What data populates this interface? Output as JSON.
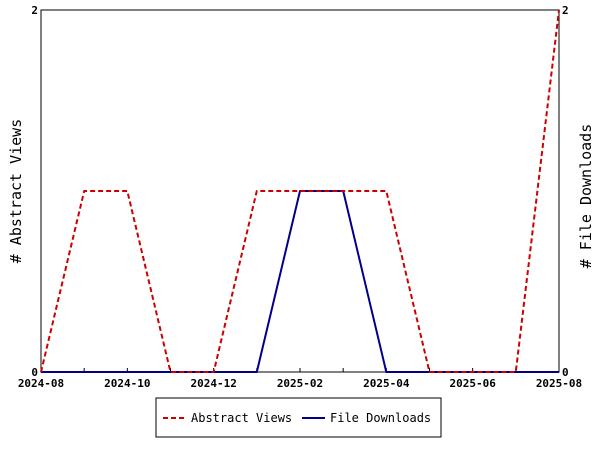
{
  "chart_data": {
    "type": "line",
    "x": [
      "2024-08",
      "2024-09",
      "2024-10",
      "2024-11",
      "2024-12",
      "2025-01",
      "2025-02",
      "2025-03",
      "2025-04",
      "2025-05",
      "2025-06",
      "2025-07",
      "2025-08"
    ],
    "x_tick_labels": [
      "2024-08",
      "2024-10",
      "2024-12",
      "2025-02",
      "2025-04",
      "2025-06",
      "2025-08"
    ],
    "series": [
      {
        "name": "Abstract Views",
        "values": [
          0,
          1,
          1,
          0,
          0,
          1,
          1,
          1,
          1,
          0,
          0,
          0,
          2
        ],
        "color": "#cc0000",
        "dash": "dashed",
        "axis": "left"
      },
      {
        "name": "File Downloads",
        "values": [
          0,
          0,
          0,
          0,
          0,
          0,
          1,
          1,
          0,
          0,
          0,
          0,
          0
        ],
        "color": "#00008b",
        "dash": "solid",
        "axis": "right"
      }
    ],
    "ylabel_left": "# Abstract Views",
    "ylabel_right": "# File Downloads",
    "ylim_left": [
      0,
      2
    ],
    "ylim_right": [
      0,
      2
    ],
    "y_tick_labels_left": [
      "0",
      "2"
    ],
    "y_tick_labels_right": [
      "0",
      "2"
    ],
    "grid": false,
    "legend_position": "bottom"
  }
}
